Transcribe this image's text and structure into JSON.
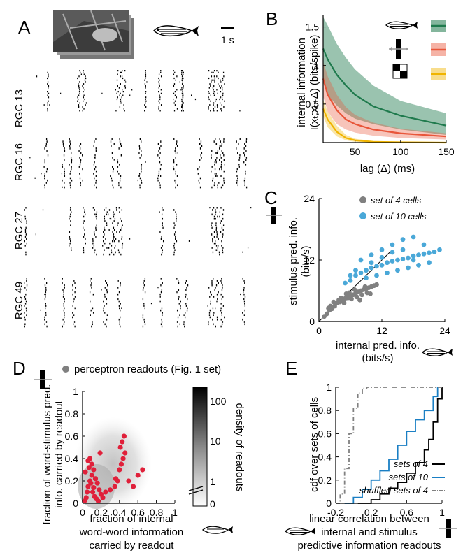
{
  "panels": {
    "A": {
      "letter": "A",
      "scalebar_label": "1 s",
      "cells": [
        "RGC 13",
        "RGC 16",
        "RGC 27",
        "RGC 49"
      ]
    },
    "B": {
      "letter": "B",
      "ylabel_line1": "internal information",
      "ylabel_line2": "I(xₜ;xₜ₊Δ) (bits/spike)",
      "xlabel": "lag (Δ) (ms)",
      "yticks": [
        "0.5",
        "1",
        "1.5"
      ],
      "xticks": [
        "50",
        "100",
        "150"
      ],
      "colors": {
        "fish": "#1f7a4d",
        "bar": "#e8563a",
        "checker": "#f0b400"
      }
    },
    "C": {
      "letter": "C",
      "ylabel_line1": "stimulus pred. info.",
      "ylabel_line2": "(bits/s)",
      "xlabel_line1": "internal pred. info.",
      "xlabel_line2": "(bits/s)",
      "ticks": [
        "0",
        "12",
        "24"
      ],
      "legend": [
        "set of 4 cells",
        "set of 10 cells"
      ],
      "colors": {
        "set4": "#808080",
        "set10": "#4aa8d8"
      }
    },
    "D": {
      "letter": "D",
      "legend": "perceptron readouts (Fig. 1 set)",
      "ylabel_line1": "fraction of word-stimulus pred.",
      "ylabel_line2": "info. carried by readout",
      "xlabel_line1": "fraction of internal",
      "xlabel_line2": "word-word information",
      "xlabel_line3": "carried by readout",
      "ticks": [
        "0",
        "0.2",
        "0.4",
        "0.6",
        "0.8",
        "1"
      ],
      "colorbar_label": "density of readouts",
      "colorbar_ticks": [
        "100",
        "10",
        "1",
        "0"
      ],
      "colors": {
        "readout": "#e0203a"
      }
    },
    "E": {
      "letter": "E",
      "ylabel": "cdf over sets of cells",
      "yticks": [
        "0",
        "0.2",
        "0.4",
        "0.6",
        "0.8",
        "1"
      ],
      "xticks": [
        "-0.2",
        "0.2",
        "0.6",
        "1"
      ],
      "xlabel_line1": "linear correlation between",
      "xlabel_line2": "internal and stimulus",
      "xlabel_line3": "predictive information readouts",
      "legend": [
        "sets of 4",
        "sets of 10",
        "shuffled sets of 4"
      ],
      "colors": {
        "sets4": "#000000",
        "sets10": "#1a7fc4",
        "shuffled": "#808080"
      }
    }
  },
  "chart_data": [
    {
      "type": "area",
      "panel": "B",
      "xlabel": "lag (Δ) (ms)",
      "ylabel": "internal information I(xₜ;xₜ₊Δ) (bits/spike)",
      "xlim": [
        15,
        150
      ],
      "ylim": [
        0,
        1.65
      ],
      "x": [
        15,
        20,
        30,
        40,
        50,
        70,
        100,
        150
      ],
      "series": [
        {
          "stim": "fish",
          "mean": [
            1.22,
            1.08,
            0.88,
            0.74,
            0.62,
            0.47,
            0.35,
            0.22
          ],
          "low": [
            0.78,
            0.62,
            0.48,
            0.38,
            0.31,
            0.24,
            0.17,
            0.1
          ],
          "high": [
            1.63,
            1.52,
            1.28,
            1.1,
            0.95,
            0.74,
            0.54,
            0.38
          ],
          "color": "#1f7a4d"
        },
        {
          "stim": "bar",
          "mean": [
            0.83,
            0.62,
            0.42,
            0.3,
            0.24,
            0.17,
            0.12,
            0.08
          ],
          "low": [
            0.6,
            0.4,
            0.24,
            0.17,
            0.13,
            0.09,
            0.06,
            0.04
          ],
          "high": [
            1.05,
            0.86,
            0.62,
            0.46,
            0.36,
            0.26,
            0.18,
            0.12
          ],
          "color": "#e8563a"
        },
        {
          "stim": "checker",
          "mean": [
            0.44,
            0.3,
            0.14,
            0.06,
            0.03,
            0.01,
            0.005,
            0.0
          ],
          "low": [
            0.34,
            0.2,
            0.08,
            0.03,
            0.01,
            0.0,
            0.0,
            0.0
          ],
          "high": [
            0.56,
            0.4,
            0.22,
            0.1,
            0.05,
            0.02,
            0.01,
            0.005
          ],
          "color": "#f0b400"
        }
      ]
    },
    {
      "type": "scatter",
      "panel": "C",
      "xlabel": "internal pred. info. (bits/s)",
      "ylabel": "stimulus pred. info. (bits/s)",
      "xlim": [
        0,
        24
      ],
      "ylim": [
        0,
        24
      ],
      "series": [
        {
          "name": "set of 4 cells",
          "color": "#808080",
          "x": [
            1.0,
            1.5,
            2.0,
            2.5,
            3.0,
            3.5,
            4.0,
            4.5,
            5.0,
            5.5,
            6.0,
            6.5,
            7.0,
            7.5,
            8.0,
            8.5,
            9.0,
            9.5,
            10.0,
            10.5,
            11.0,
            2.2,
            3.2,
            4.2,
            5.2,
            6.2,
            7.2,
            8.2,
            9.2,
            1.8,
            2.8,
            3.8,
            4.8,
            5.8,
            6.8,
            7.8,
            8.8,
            9.8
          ],
          "y": [
            1.0,
            1.5,
            2.2,
            2.5,
            3.0,
            3.6,
            3.8,
            4.0,
            4.5,
            4.6,
            5.0,
            5.2,
            5.5,
            5.8,
            6.0,
            6.2,
            6.4,
            6.6,
            6.8,
            7.0,
            7.2,
            3.0,
            3.5,
            4.6,
            5.4,
            4.4,
            4.8,
            5.2,
            5.6,
            2.6,
            3.8,
            4.2,
            3.6,
            5.6,
            6.2,
            4.2,
            6.8,
            5.4
          ]
        },
        {
          "name": "set of 10 cells",
          "color": "#4aa8d8",
          "x": [
            5,
            6,
            7,
            8,
            9,
            10,
            11,
            12,
            13,
            14,
            15,
            16,
            17,
            18,
            19,
            20,
            21,
            22,
            23,
            8,
            10,
            12,
            14,
            16,
            18,
            20,
            9,
            11,
            13,
            15,
            17,
            19,
            21,
            7,
            6,
            12,
            14,
            16,
            18,
            10
          ],
          "y": [
            7.5,
            8,
            9,
            9.5,
            10,
            10.5,
            10.8,
            11,
            11.5,
            11.8,
            12,
            12.2,
            12.4,
            12.8,
            13,
            13.2,
            13.4,
            13.6,
            14,
            12,
            13,
            14,
            15,
            16,
            16.5,
            15,
            8.5,
            9,
            9.5,
            10,
            10.5,
            11,
            11.5,
            10,
            9,
            12.5,
            13.5,
            14,
            12,
            11.5
          ]
        }
      ]
    },
    {
      "type": "scatter",
      "panel": "D",
      "xlabel": "fraction of internal word-word information carried by readout",
      "ylabel": "fraction of word-stimulus pred. info. carried by readout",
      "xlim": [
        0,
        1
      ],
      "ylim": [
        0,
        1
      ],
      "series": [
        {
          "name": "",
          "color": "#e0203a",
          "x": [
            0.02,
            0.04,
            0.05,
            0.06,
            0.08,
            0.1,
            0.12,
            0.14,
            0.16,
            0.18,
            0.2,
            0.22,
            0.25,
            0.3,
            0.35,
            0.38,
            0.4,
            0.42,
            0.44,
            0.46,
            0.5,
            0.55,
            0.6,
            0.65,
            0.03,
            0.07,
            0.09,
            0.11,
            0.13,
            0.15,
            0.17,
            0.19,
            0.41,
            0.43,
            0.45,
            0.36,
            0.1,
            0.08,
            0.06,
            0.12
          ],
          "y": [
            0.02,
            0.05,
            0.1,
            0.15,
            0.2,
            0.25,
            0.3,
            0.22,
            0.18,
            0.12,
            0.08,
            0.05,
            0.1,
            0.12,
            0.15,
            0.2,
            0.3,
            0.35,
            0.4,
            0.45,
            0.2,
            0.15,
            0.25,
            0.3,
            0.28,
            0.32,
            0.18,
            0.1,
            0.06,
            0.04,
            0.02,
            0.45,
            0.5,
            0.55,
            0.6,
            0.22,
            0.35,
            0.4,
            0.38,
            0.14
          ]
        }
      ]
    },
    {
      "type": "line",
      "panel": "E",
      "xlabel": "linear correlation between internal and stimulus predictive information readouts",
      "ylabel": "cdf over sets of cells",
      "xlim": [
        -0.2,
        1
      ],
      "ylim": [
        0,
        1
      ],
      "series": [
        {
          "name": "sets of 4",
          "x": [
            0.05,
            0.2,
            0.3,
            0.4,
            0.5,
            0.6,
            0.7,
            0.8,
            0.85,
            0.9,
            0.95,
            1.0
          ],
          "y": [
            0,
            0.03,
            0.08,
            0.13,
            0.18,
            0.26,
            0.35,
            0.46,
            0.55,
            0.7,
            0.9,
            1
          ]
        },
        {
          "name": "sets of 10",
          "x": [
            -0.1,
            0.0,
            0.1,
            0.2,
            0.3,
            0.4,
            0.5,
            0.6,
            0.7,
            0.8,
            0.9,
            0.95
          ],
          "y": [
            0,
            0.05,
            0.12,
            0.2,
            0.28,
            0.38,
            0.5,
            0.62,
            0.72,
            0.8,
            0.92,
            1
          ]
        },
        {
          "name": "shuffled sets of 4",
          "x": [
            -0.2,
            -0.15,
            -0.1,
            -0.05,
            0.0,
            0.05,
            0.1,
            0.15,
            1.0
          ],
          "y": [
            0,
            0.08,
            0.3,
            0.6,
            0.82,
            0.95,
            0.99,
            1,
            1
          ]
        }
      ]
    }
  ]
}
